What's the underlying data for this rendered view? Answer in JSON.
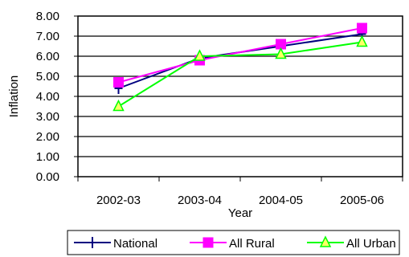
{
  "chart_data": {
    "type": "line",
    "title": "",
    "xlabel": "Year",
    "ylabel": "Inflation",
    "categories": [
      "2002-03",
      "2003-04",
      "2004-05",
      "2005-06"
    ],
    "ylim": [
      0,
      8
    ],
    "ytick_labels": [
      "0.00",
      "1.00",
      "2.00",
      "3.00",
      "4.00",
      "5.00",
      "6.00",
      "7.00",
      "8.00"
    ],
    "grid": "horizontal",
    "legend": "bottom",
    "series": [
      {
        "name": "National",
        "values": [
          4.4,
          5.9,
          6.5,
          7.1
        ],
        "color": "#000080",
        "marker": "plus"
      },
      {
        "name": "All Rural",
        "values": [
          4.7,
          5.8,
          6.6,
          7.4
        ],
        "color": "#ff00ff",
        "marker": "square"
      },
      {
        "name": "All Urban",
        "values": [
          3.5,
          6.0,
          6.1,
          6.7
        ],
        "color": "#00ff00",
        "marker": "triangle"
      }
    ]
  }
}
